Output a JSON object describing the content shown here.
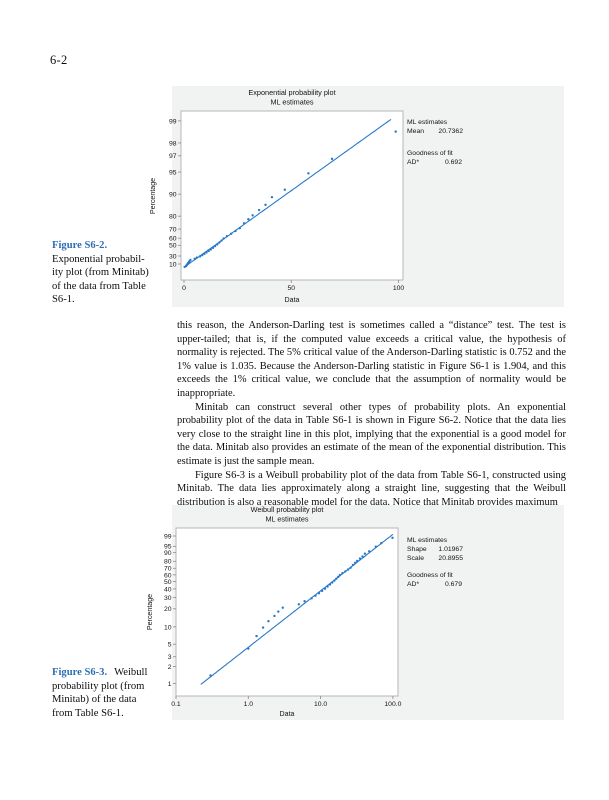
{
  "page": {
    "number": "6-2"
  },
  "colors": {
    "plot_blue": "#2878c8",
    "caption_blue": "#2f6eb5",
    "figure_background": "#f1f2f2",
    "frame_gray": "#b0b0b0"
  },
  "paragraphs": {
    "p1": "this reason, the Anderson-Darling test is sometimes called a “distance” test. The test is upper-tailed; that is, if the computed value exceeds a critical value, the hypothesis of normality is rejected. The 5% critical value of the Anderson-Darling statistic is 0.752 and the 1% value is 1.035. Because the Anderson-Darling statistic in Figure S6-1 is 1.904, and this exceeds the 1% critical value, we conclude that the assumption of normality would be inappropriate.",
    "p2": "Minitab can construct several other types of probability plots. An exponential probability plot of the data in Table S6-1 is shown in Figure S6-2. Notice that the data lies very close to the straight line in this plot, implying that the exponential is a good model for the data. Minitab also provides an estimate of the mean of the exponential distribution. This estimate is just the sample mean.",
    "p3": "Figure S6-3 is a Weibull probability plot of the data from Table S6-1, constructed using Minitab. The data lies approximately along a straight line, suggesting that the Weibull distribution is also a reasonable model for the data. Notice that Minitab provides maximum"
  },
  "figures": [
    {
      "caption_label": "Figure S6-2.",
      "caption_text": "Exponential probabil-\nity plot (from Minitab)\nof the data from Table\nS6-1."
    },
    {
      "caption_label": "Figure S6-3.",
      "caption_inline": "Weibull",
      "caption_text": "probability plot (from\nMinitab) of the data\nfrom Table S6-1."
    }
  ],
  "chart_data": [
    {
      "type": "scatter",
      "title": "Exponential probability plot",
      "subtitle": "ML estimates",
      "xlabel": "Data",
      "ylabel": "Percentage",
      "x_scale": "linear",
      "y_scale": "exponential-probability",
      "x_ticks": [
        "0",
        "50",
        "100"
      ],
      "y_ticks": [
        10,
        30,
        50,
        60,
        70,
        80,
        90,
        95,
        97,
        98,
        99
      ],
      "xlim": [
        0,
        100
      ],
      "grid": false,
      "legend_position": "right",
      "legend": {
        "ml_title": "ML estimates",
        "mean_label": "Mean",
        "mean": "20.7362",
        "gof_title": "Goodness of fit",
        "ad_label": "AD*",
        "ad": "0.692"
      },
      "fit": {
        "distribution": "exponential",
        "mean": 20.7362
      },
      "points": [
        [
          0.3,
          1.39
        ],
        [
          1.0,
          4.17
        ],
        [
          1.3,
          6.94
        ],
        [
          1.6,
          9.72
        ],
        [
          1.9,
          12.5
        ],
        [
          2.3,
          15.28
        ],
        [
          2.6,
          18.06
        ],
        [
          3.0,
          20.83
        ],
        [
          5.0,
          23.61
        ],
        [
          6.0,
          26.39
        ],
        [
          7.5,
          29.17
        ],
        [
          8.5,
          31.94
        ],
        [
          9.5,
          34.72
        ],
        [
          10.5,
          37.5
        ],
        [
          11.5,
          40.28
        ],
        [
          12.5,
          43.06
        ],
        [
          13.5,
          45.83
        ],
        [
          14.5,
          48.61
        ],
        [
          15.5,
          51.39
        ],
        [
          16.5,
          54.17
        ],
        [
          17.5,
          56.94
        ],
        [
          18.5,
          59.72
        ],
        [
          20,
          62.5
        ],
        [
          22,
          65.28
        ],
        [
          24,
          68.06
        ],
        [
          26,
          70.83
        ],
        [
          28,
          75
        ],
        [
          30,
          78
        ],
        [
          32,
          80.5
        ],
        [
          35,
          83.5
        ],
        [
          38,
          86
        ],
        [
          41,
          89
        ],
        [
          47,
          91.3
        ],
        [
          58,
          94.8
        ],
        [
          69,
          96.7
        ],
        [
          98.7,
          98.6
        ]
      ]
    },
    {
      "type": "scatter",
      "title": "Weibull probability plot",
      "subtitle": "ML estimates",
      "xlabel": "Data",
      "ylabel": "Percentage",
      "x_scale": "log",
      "y_scale": "weibull-probability",
      "x_ticks": [
        "0.1",
        "1.0",
        "10.0",
        "100.0"
      ],
      "y_ticks": [
        1,
        2,
        3,
        5,
        10,
        20,
        30,
        40,
        50,
        60,
        70,
        80,
        90,
        95,
        99
      ],
      "xlim": [
        0.1,
        120
      ],
      "grid": false,
      "legend_position": "right",
      "legend": {
        "ml_title": "ML estimates",
        "shape_label": "Shape",
        "shape": "1.01967",
        "scale_label": "Scale",
        "scale": "20.8955",
        "gof_title": "Goodness of fit",
        "ad_label": "AD*",
        "ad": "0.679"
      },
      "fit": {
        "distribution": "weibull",
        "shape": 1.01967,
        "scale": 20.8955
      },
      "points": [
        [
          0.3,
          1.39
        ],
        [
          1.0,
          4.17
        ],
        [
          1.3,
          6.94
        ],
        [
          1.6,
          9.72
        ],
        [
          1.9,
          12.5
        ],
        [
          2.3,
          15.28
        ],
        [
          2.6,
          18.06
        ],
        [
          3.0,
          20.83
        ],
        [
          5.0,
          23.61
        ],
        [
          6.0,
          26.39
        ],
        [
          7.5,
          29.17
        ],
        [
          8.5,
          31.94
        ],
        [
          9.5,
          34.72
        ],
        [
          10.5,
          37.5
        ],
        [
          11.5,
          40.28
        ],
        [
          12.5,
          43.06
        ],
        [
          13.5,
          45.83
        ],
        [
          14.5,
          48.61
        ],
        [
          15.5,
          51.39
        ],
        [
          16.5,
          54.17
        ],
        [
          17.5,
          56.94
        ],
        [
          18.5,
          59.72
        ],
        [
          20,
          62.5
        ],
        [
          22,
          65.28
        ],
        [
          24,
          68.06
        ],
        [
          26,
          70.83
        ],
        [
          28,
          75
        ],
        [
          30,
          78
        ],
        [
          32,
          80.5
        ],
        [
          35,
          83.5
        ],
        [
          38,
          86
        ],
        [
          41,
          89
        ],
        [
          47,
          91.3
        ],
        [
          58,
          94.8
        ],
        [
          69,
          96.7
        ],
        [
          98.7,
          98.6
        ]
      ]
    }
  ]
}
